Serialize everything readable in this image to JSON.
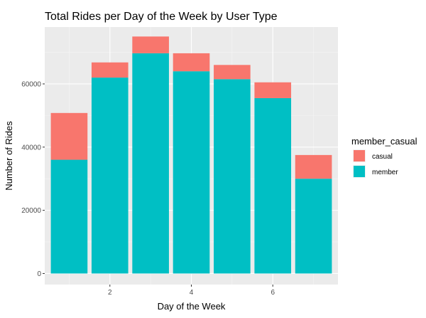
{
  "chart_data": {
    "type": "bar",
    "stacked": true,
    "title": "Total Rides per Day of the Week by User Type",
    "xlabel": "Day of the Week",
    "ylabel": "Number of Rides",
    "x": [
      1,
      2,
      3,
      4,
      5,
      6,
      7
    ],
    "xticks": [
      2,
      4,
      6
    ],
    "xlim": [
      0.4,
      7.6
    ],
    "yticks": [
      0,
      20000,
      40000,
      60000
    ],
    "ytick_labels": [
      "0",
      "20000",
      "40000",
      "60000"
    ],
    "ylim": [
      -3500,
      78000
    ],
    "grid": true,
    "legend": {
      "title": "member_casual",
      "position": "right"
    },
    "series": [
      {
        "name": "member",
        "color": "#00BFC4",
        "values": [
          36000,
          62000,
          69700,
          64000,
          61500,
          55500,
          30000
        ]
      },
      {
        "name": "casual",
        "color": "#F8766D",
        "values": [
          14800,
          4800,
          5300,
          5700,
          4500,
          5000,
          7500
        ]
      }
    ],
    "legend_order": [
      "casual",
      "member"
    ]
  }
}
